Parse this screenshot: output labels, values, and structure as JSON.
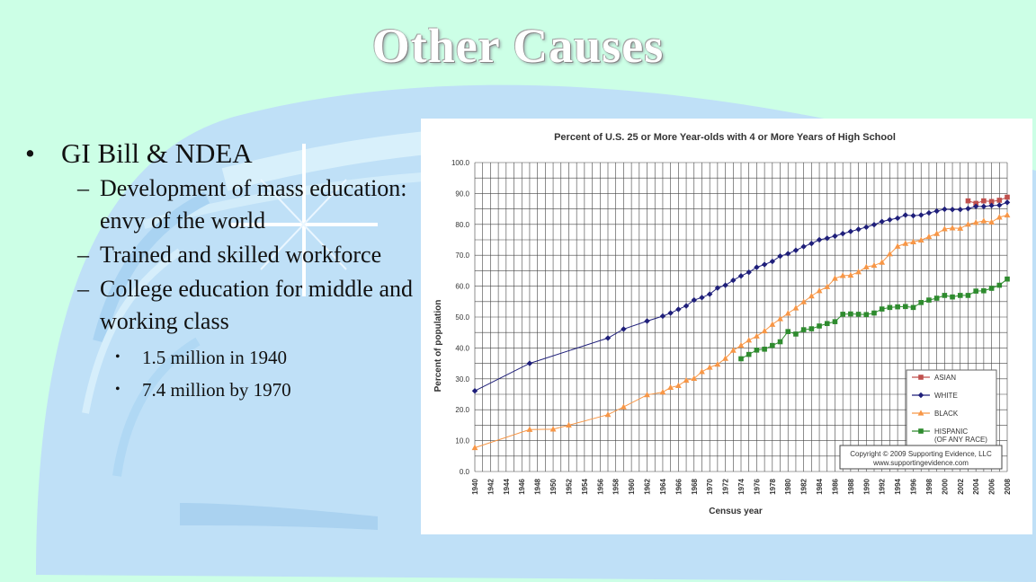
{
  "slide": {
    "title": "Other Causes",
    "bullets": [
      {
        "text": "GI Bill & NDEA",
        "level": 1
      },
      {
        "text": "Development of mass education: envy of the world",
        "level": 2
      },
      {
        "text": "Trained and skilled workforce",
        "level": 2
      },
      {
        "text": "College education for middle and working class",
        "level": 2
      },
      {
        "text": "1.5 million in 1940",
        "level": 3
      },
      {
        "text": "7.4 million by 1970",
        "level": 3
      }
    ]
  },
  "chart_data": {
    "type": "line",
    "title": "Percent of U.S. 25 or More Year-olds with 4 or More Years of High School",
    "xlabel": "Census year",
    "ylabel": "Percent of population",
    "xlim": [
      1940,
      2008
    ],
    "ylim": [
      0,
      100
    ],
    "x_ticks": [
      1940,
      1942,
      1944,
      1946,
      1948,
      1950,
      1952,
      1954,
      1956,
      1958,
      1960,
      1962,
      1964,
      1966,
      1968,
      1970,
      1972,
      1974,
      1976,
      1978,
      1980,
      1982,
      1984,
      1986,
      1988,
      1990,
      1992,
      1994,
      1996,
      1998,
      2000,
      2002,
      2004,
      2006,
      2008
    ],
    "y_ticks": [
      "0.0",
      "10.0",
      "20.0",
      "30.0",
      "40.0",
      "50.0",
      "60.0",
      "70.0",
      "80.0",
      "90.0",
      "100.0"
    ],
    "grid": true,
    "legend_position": "bottom-right",
    "copyright": [
      "Copyright © 2009 Supporting Evidence, LLC",
      "www.supportingevidence.com"
    ],
    "series": [
      {
        "name": "ASIAN",
        "color": "#c0504d",
        "marker": "square",
        "x": [
          2003,
          2004,
          2005,
          2006,
          2007,
          2008
        ],
        "y": [
          87.6,
          86.8,
          87.6,
          87.4,
          87.8,
          88.8
        ]
      },
      {
        "name": "WHITE",
        "color": "#1f1f7a",
        "marker": "diamond",
        "x": [
          1940,
          1947,
          1957,
          1959,
          1962,
          1964,
          1965,
          1966,
          1967,
          1968,
          1969,
          1970,
          1971,
          1972,
          1973,
          1974,
          1975,
          1976,
          1977,
          1978,
          1979,
          1980,
          1981,
          1982,
          1983,
          1984,
          1985,
          1986,
          1987,
          1988,
          1989,
          1990,
          1991,
          1992,
          1993,
          1994,
          1995,
          1996,
          1997,
          1998,
          1999,
          2000,
          2001,
          2002,
          2003,
          2004,
          2005,
          2006,
          2007,
          2008
        ],
        "y": [
          26.1,
          35.0,
          43.2,
          46.1,
          48.7,
          50.3,
          51.3,
          52.5,
          53.6,
          55.5,
          56.3,
          57.4,
          59.4,
          60.3,
          61.9,
          63.3,
          64.5,
          66.1,
          67.0,
          68.0,
          69.7,
          70.5,
          71.6,
          72.8,
          73.8,
          75.0,
          75.5,
          76.2,
          77.0,
          77.7,
          78.4,
          79.1,
          79.9,
          80.9,
          81.5,
          82.0,
          83.0,
          82.8,
          83.0,
          83.7,
          84.3,
          84.9,
          84.8,
          84.8,
          85.1,
          85.8,
          85.8,
          86.1,
          86.2,
          87.1
        ]
      },
      {
        "name": "BLACK",
        "color": "#f79646",
        "marker": "triangle",
        "x": [
          1940,
          1947,
          1950,
          1952,
          1957,
          1959,
          1962,
          1964,
          1965,
          1966,
          1967,
          1968,
          1969,
          1970,
          1971,
          1972,
          1973,
          1974,
          1975,
          1976,
          1977,
          1978,
          1979,
          1980,
          1981,
          1982,
          1983,
          1984,
          1985,
          1986,
          1987,
          1988,
          1989,
          1990,
          1991,
          1992,
          1993,
          1994,
          1995,
          1996,
          1997,
          1998,
          1999,
          2000,
          2001,
          2002,
          2003,
          2004,
          2005,
          2006,
          2007,
          2008
        ],
        "y": [
          7.7,
          13.6,
          13.7,
          15.0,
          18.4,
          20.9,
          24.8,
          25.7,
          27.2,
          27.8,
          29.5,
          30.1,
          32.3,
          33.7,
          34.7,
          36.6,
          39.2,
          40.8,
          42.5,
          43.8,
          45.5,
          47.6,
          49.4,
          51.2,
          52.9,
          54.9,
          56.8,
          58.5,
          59.8,
          62.5,
          63.4,
          63.5,
          64.6,
          66.2,
          66.7,
          67.7,
          70.4,
          72.9,
          73.8,
          74.3,
          74.9,
          76.0,
          77.0,
          78.5,
          78.8,
          78.7,
          80.0,
          80.6,
          81.1,
          80.7,
          82.3,
          83.0
        ]
      },
      {
        "name": "HISPANIC (OF ANY RACE)",
        "color": "#2e8b2e",
        "marker": "square",
        "x": [
          1974,
          1975,
          1976,
          1977,
          1978,
          1979,
          1980,
          1981,
          1982,
          1983,
          1984,
          1985,
          1986,
          1987,
          1988,
          1989,
          1990,
          1991,
          1992,
          1993,
          1994,
          1995,
          1996,
          1997,
          1998,
          1999,
          2000,
          2001,
          2002,
          2003,
          2004,
          2005,
          2006,
          2007,
          2008
        ],
        "y": [
          36.5,
          37.9,
          39.3,
          39.6,
          40.8,
          42.0,
          45.3,
          44.5,
          45.9,
          46.2,
          47.1,
          47.9,
          48.5,
          50.9,
          51.0,
          50.9,
          50.8,
          51.3,
          52.6,
          53.1,
          53.3,
          53.4,
          53.1,
          54.7,
          55.5,
          56.1,
          57.0,
          56.5,
          57.0,
          57.0,
          58.4,
          58.5,
          59.3,
          60.3,
          62.3
        ]
      }
    ]
  }
}
